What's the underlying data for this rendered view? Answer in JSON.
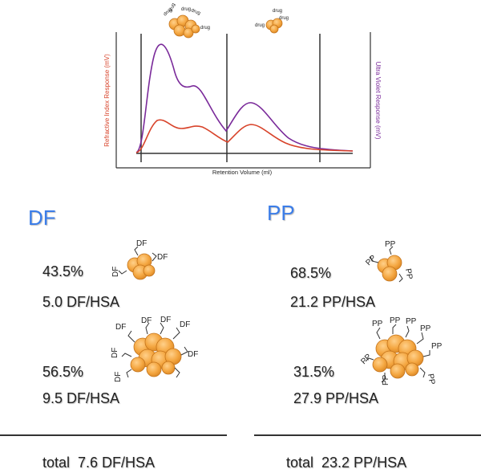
{
  "chart": {
    "xlabel": "Retention Volume (ml)",
    "ylabel_left": "Refractive Index Response (mV)",
    "ylabel_right": "Ultra Violet Response (mV)",
    "drug_label": "drug",
    "colors": {
      "refractive": "#d8432a",
      "uv": "#7a2a9a",
      "axis": "#333333"
    }
  },
  "df": {
    "title": "DF",
    "tag": "DF",
    "fraction1": {
      "percent": "43.5%",
      "ratio": "5.0 DF/HSA"
    },
    "fraction2": {
      "percent": "56.5%",
      "ratio": "9.5 DF/HSA"
    },
    "total": "total  7.6 DF/HSA"
  },
  "pp": {
    "title": "PP",
    "tag": "PP",
    "fraction1": {
      "percent": "68.5%",
      "ratio": "21.2 PP/HSA"
    },
    "fraction2": {
      "percent": "31.5%",
      "ratio": "27.9 PP/HSA"
    },
    "total": "total  23.2 PP/HSA"
  },
  "colors": {
    "accent": "#3b7de8",
    "protein": "#f4a640",
    "protein_edge": "#c4741c"
  }
}
